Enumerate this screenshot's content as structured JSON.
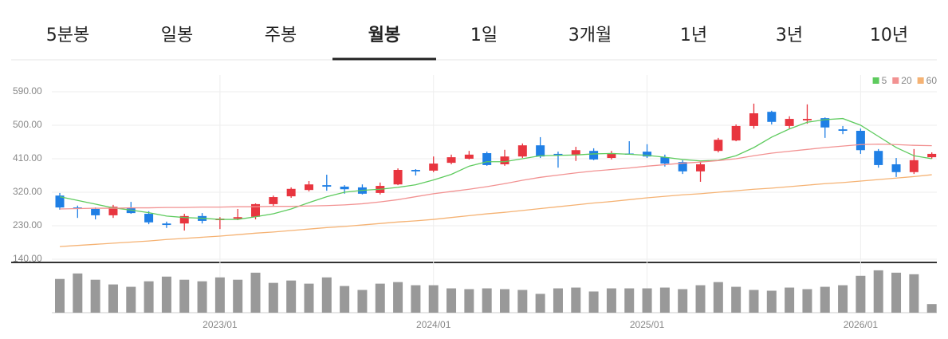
{
  "tabs": [
    {
      "label": "5분봉"
    },
    {
      "label": "일봉"
    },
    {
      "label": "주봉"
    },
    {
      "label": "월봉",
      "active": true
    },
    {
      "label": "1일"
    },
    {
      "label": "3개월"
    },
    {
      "label": "1년"
    },
    {
      "label": "3년"
    },
    {
      "label": "10년"
    }
  ],
  "chart_data": {
    "type": "candlestick",
    "categories": [
      null,
      null,
      null,
      null,
      null,
      null,
      null,
      null,
      null,
      "2023/01",
      null,
      null,
      null,
      null,
      null,
      null,
      null,
      null,
      null,
      null,
      null,
      "2024/01",
      null,
      null,
      null,
      null,
      null,
      null,
      null,
      null,
      null,
      null,
      null,
      "2025/01",
      null,
      null,
      null,
      null,
      null,
      null,
      null,
      null,
      null,
      null,
      null,
      "2026/01",
      null,
      null,
      null,
      null
    ],
    "open": [
      311,
      279,
      275,
      258,
      279,
      262,
      236,
      236,
      256,
      245,
      249,
      254,
      288,
      309,
      326,
      339,
      335,
      333,
      318,
      341,
      380,
      378,
      399,
      410,
      425,
      395,
      416,
      446,
      423,
      421,
      431,
      412,
      424,
      429,
      414,
      401,
      376,
      431,
      459,
      498,
      536,
      498,
      513,
      519,
      489,
      485,
      431,
      395,
      374,
      414
    ],
    "high": [
      318,
      284,
      279,
      286,
      294,
      269,
      241,
      262,
      264,
      253,
      275,
      290,
      311,
      333,
      350,
      367,
      339,
      341,
      346,
      384,
      382,
      416,
      421,
      431,
      429,
      434,
      451,
      468,
      429,
      442,
      438,
      431,
      457,
      449,
      421,
      406,
      401,
      466,
      502,
      558,
      539,
      524,
      556,
      521,
      498,
      491,
      436,
      412,
      436,
      427
    ],
    "low": [
      273,
      251,
      247,
      251,
      262,
      234,
      224,
      217,
      236,
      221,
      245,
      247,
      281,
      305,
      322,
      324,
      316,
      314,
      314,
      339,
      365,
      374,
      395,
      408,
      391,
      391,
      412,
      412,
      386,
      404,
      406,
      408,
      423,
      412,
      389,
      369,
      348,
      427,
      457,
      491,
      502,
      491,
      504,
      466,
      476,
      423,
      386,
      361,
      369,
      410
    ],
    "close": [
      279,
      276,
      258,
      281,
      264,
      239,
      232,
      256,
      243,
      249,
      253,
      288,
      307,
      329,
      341,
      335,
      328,
      316,
      337,
      380,
      376,
      397,
      414,
      421,
      393,
      416,
      446,
      416,
      421,
      433,
      408,
      425,
      423,
      416,
      397,
      376,
      395,
      461,
      498,
      532,
      509,
      517,
      517,
      494,
      485,
      433,
      393,
      374,
      406,
      423
    ],
    "up_color": "#e8353f",
    "down_color": "#1f7fe5",
    "series": [
      {
        "name": "5",
        "color": "#5ecb5e",
        "values": [
          308,
          298,
          288,
          278,
          272,
          265,
          256,
          252,
          250,
          247,
          247,
          254,
          262,
          275,
          292,
          308,
          320,
          325,
          328,
          333,
          340,
          353,
          368,
          390,
          402,
          402,
          410,
          418,
          419,
          420,
          423,
          424,
          422,
          419,
          414,
          408,
          404,
          406,
          418,
          440,
          468,
          490,
          508,
          515,
          518,
          500,
          470,
          440,
          418,
          410
        ]
      },
      {
        "name": "20",
        "color": "#f29292",
        "values": [
          275,
          276,
          277,
          277,
          278,
          278,
          279,
          279,
          280,
          280,
          281,
          281,
          282,
          282,
          283,
          284,
          286,
          289,
          294,
          300,
          308,
          316,
          322,
          328,
          335,
          343,
          352,
          360,
          366,
          372,
          377,
          381,
          385,
          390,
          394,
          398,
          401,
          405,
          410,
          418,
          425,
          430,
          435,
          440,
          444,
          448,
          449,
          448,
          446,
          445
        ]
      },
      {
        "name": "60",
        "color": "#f5b273",
        "values": [
          174,
          177,
          180,
          183,
          186,
          189,
          193,
          196,
          199,
          202,
          206,
          210,
          213,
          217,
          221,
          225,
          228,
          232,
          236,
          240,
          243,
          247,
          252,
          257,
          262,
          266,
          271,
          276,
          281,
          286,
          291,
          295,
          300,
          305,
          309,
          313,
          316,
          320,
          324,
          328,
          331,
          335,
          339,
          343,
          346,
          350,
          354,
          358,
          362,
          367
        ]
      }
    ],
    "ylim": [
      135,
      635
    ],
    "yticks": [
      {
        "value": 140,
        "label": "140.00"
      },
      {
        "value": 230,
        "label": "230.00"
      },
      {
        "value": 320,
        "label": "320.00"
      },
      {
        "value": 410,
        "label": "410.00"
      },
      {
        "value": 500,
        "label": "500.00"
      },
      {
        "value": 590,
        "label": "590.00"
      }
    ],
    "grid": true,
    "legend": "top-right",
    "volume": {
      "color": "#999999",
      "ylim": [
        0,
        60
      ],
      "values": [
        43,
        50,
        42,
        36,
        33,
        40,
        46,
        42,
        40,
        45,
        42,
        51,
        38,
        41,
        37,
        45,
        34,
        29,
        37,
        39,
        35,
        35,
        31,
        30,
        31,
        30,
        29,
        24,
        31,
        32,
        27,
        31,
        31,
        31,
        32,
        30,
        35,
        39,
        33,
        29,
        28,
        32,
        30,
        33,
        35,
        47,
        54,
        51,
        49,
        11
      ]
    }
  }
}
